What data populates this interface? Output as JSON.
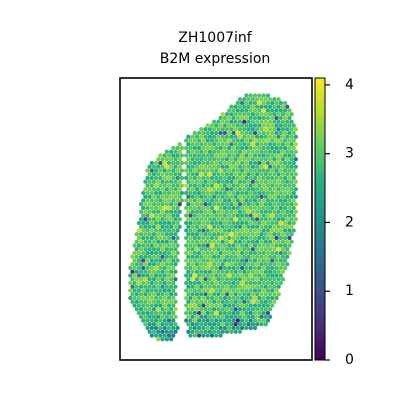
{
  "chart_data": {
    "type": "scatter",
    "title_line1": "ZH1007inf",
    "title_line2": "B2M expression",
    "xlabel": "",
    "ylabel": "",
    "grid": false,
    "colormap": "viridis",
    "colorbar": {
      "range": [
        0,
        4.1
      ],
      "ticks": [
        0,
        1,
        2,
        3,
        4
      ],
      "tick_labels": [
        "0",
        "1",
        "2",
        "3",
        "4"
      ]
    },
    "series": [
      {
        "values_summary": "B2M expression per spot, mostly between 2.5 and 4, with a few low values near the lower edge"
      }
    ]
  }
}
